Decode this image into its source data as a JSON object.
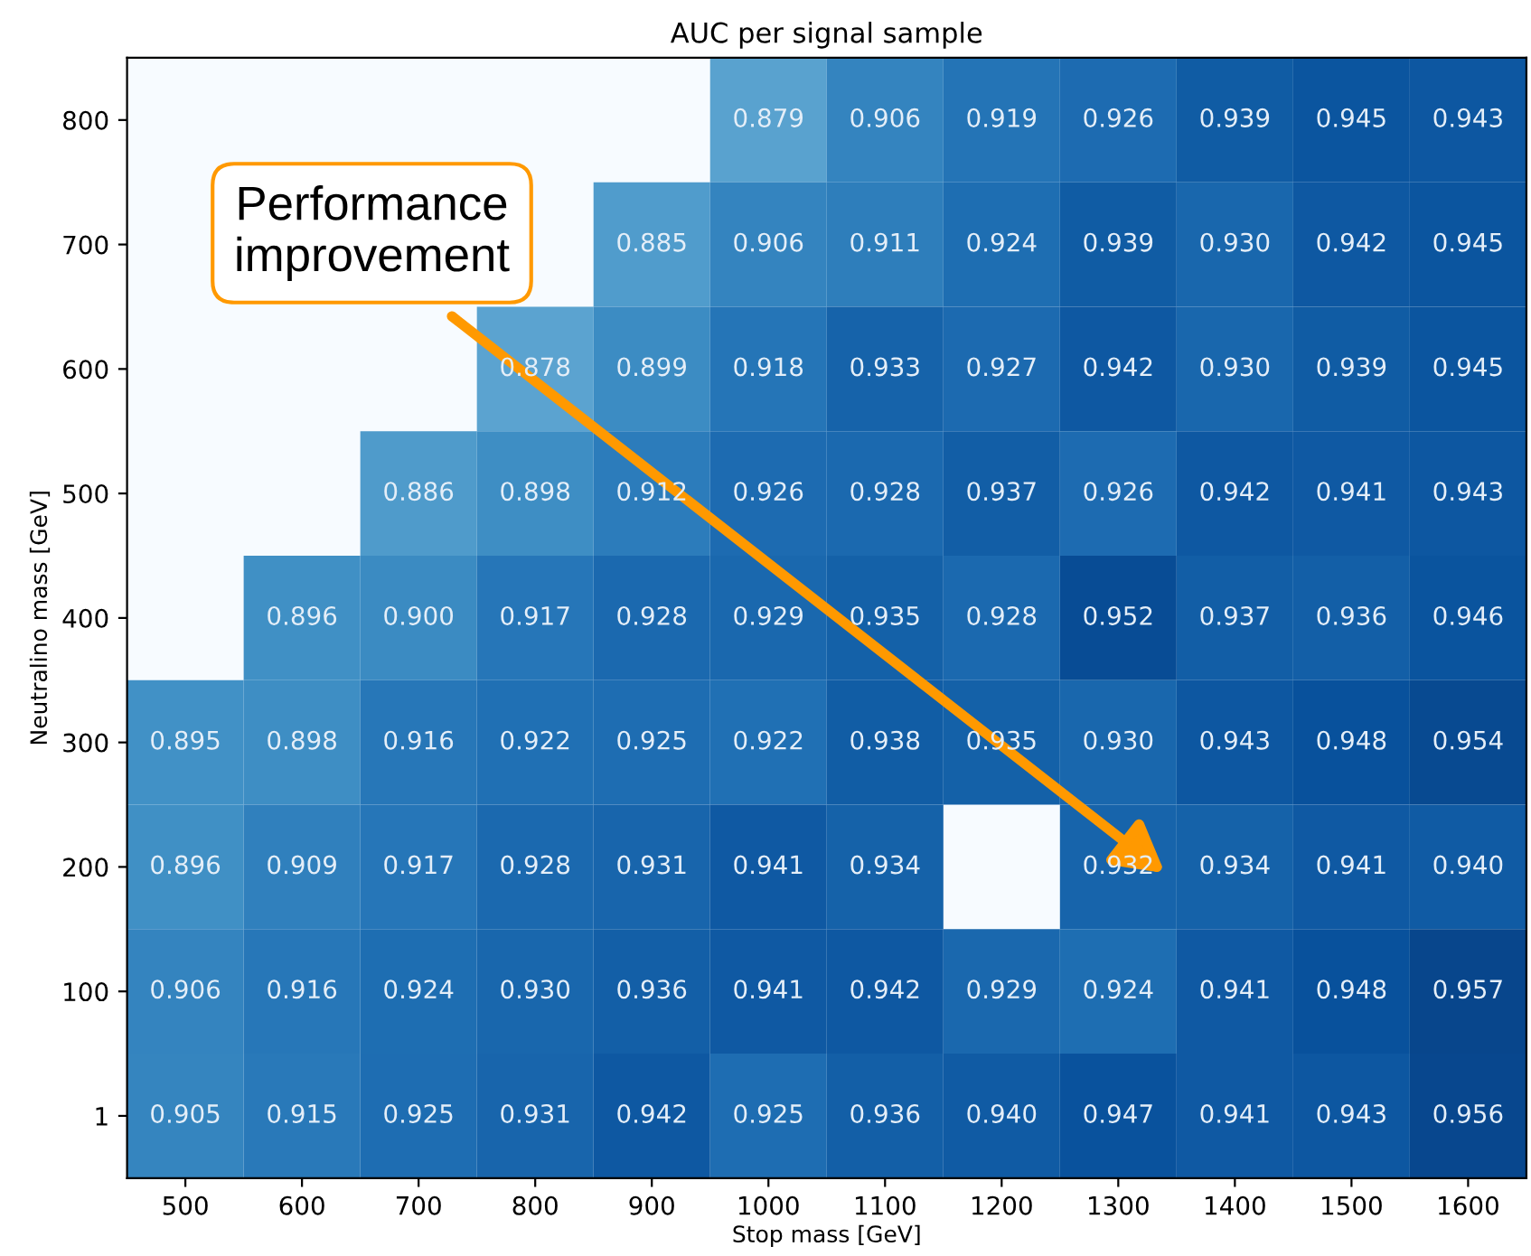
{
  "chart_data": {
    "type": "heatmap",
    "title": "AUC per signal sample",
    "xlabel": "Stop mass [GeV]",
    "ylabel": "Neutralino mass [GeV]",
    "categories": [
      "500",
      "600",
      "700",
      "800",
      "900",
      "1000",
      "1100",
      "1200",
      "1300",
      "1400",
      "1500",
      "1600"
    ],
    "y_categories": [
      "800",
      "700",
      "600",
      "500",
      "400",
      "300",
      "200",
      "100",
      "1"
    ],
    "cells": [
      [
        null,
        null,
        null,
        null,
        null,
        0.879,
        0.906,
        0.919,
        0.926,
        0.939,
        0.945,
        0.943
      ],
      [
        null,
        null,
        null,
        null,
        0.885,
        0.906,
        0.911,
        0.924,
        0.939,
        0.93,
        0.942,
        0.945
      ],
      [
        null,
        null,
        null,
        0.878,
        0.899,
        0.918,
        0.933,
        0.927,
        0.942,
        0.93,
        0.939,
        0.945
      ],
      [
        null,
        null,
        0.886,
        0.898,
        0.912,
        0.926,
        0.928,
        0.937,
        0.926,
        0.942,
        0.941,
        0.943
      ],
      [
        null,
        0.896,
        0.9,
        0.917,
        0.928,
        0.929,
        0.935,
        0.928,
        0.952,
        0.937,
        0.936,
        0.946
      ],
      [
        0.895,
        0.898,
        0.916,
        0.922,
        0.925,
        0.922,
        0.938,
        0.935,
        0.93,
        0.943,
        0.948,
        0.954
      ],
      [
        0.896,
        0.909,
        0.917,
        0.928,
        0.931,
        0.941,
        0.934,
        null,
        0.932,
        0.934,
        0.941,
        0.94
      ],
      [
        0.906,
        0.916,
        0.924,
        0.93,
        0.936,
        0.941,
        0.942,
        0.929,
        0.924,
        0.941,
        0.948,
        0.957
      ],
      [
        0.905,
        0.915,
        0.925,
        0.931,
        0.942,
        0.925,
        0.936,
        0.94,
        0.947,
        0.941,
        0.943,
        0.956
      ]
    ],
    "cell_labels": [
      [
        null,
        null,
        null,
        null,
        null,
        "0.879",
        "0.906",
        "0.919",
        "0.926",
        "0.939",
        "0.945",
        "0.943"
      ],
      [
        null,
        null,
        null,
        null,
        "0.885",
        "0.906",
        "0.911",
        "0.924",
        "0.939",
        "0.930",
        "0.942",
        "0.945"
      ],
      [
        null,
        null,
        null,
        "0.878",
        "0.899",
        "0.918",
        "0.933",
        "0.927",
        "0.942",
        "0.930",
        "0.939",
        "0.945"
      ],
      [
        null,
        null,
        "0.886",
        "0.898",
        "0.912",
        "0.926",
        "0.928",
        "0.937",
        "0.926",
        "0.942",
        "0.941",
        "0.943"
      ],
      [
        null,
        "0.896",
        "0.900",
        "0.917",
        "0.928",
        "0.929",
        "0.935",
        "0.928",
        "0.952",
        "0.937",
        "0.936",
        "0.946"
      ],
      [
        "0.895",
        "0.898",
        "0.916",
        "0.922",
        "0.925",
        "0.922",
        "0.938",
        "0.935",
        "0.930",
        "0.943",
        "0.948",
        "0.954"
      ],
      [
        "0.896",
        "0.909",
        "0.917",
        "0.928",
        "0.931",
        "0.941",
        "0.934",
        null,
        "0.932",
        "0.934",
        "0.941",
        "0.940"
      ],
      [
        "0.906",
        "0.916",
        "0.924",
        "0.930",
        "0.936",
        "0.941",
        "0.942",
        "0.929",
        "0.924",
        "0.941",
        "0.948",
        "0.957"
      ],
      [
        "0.905",
        "0.915",
        "0.925",
        "0.931",
        "0.942",
        "0.925",
        "0.936",
        "0.940",
        "0.947",
        "0.941",
        "0.943",
        "0.956"
      ]
    ],
    "data_labels": true,
    "annotations": [
      "Performance improvement"
    ]
  }
}
